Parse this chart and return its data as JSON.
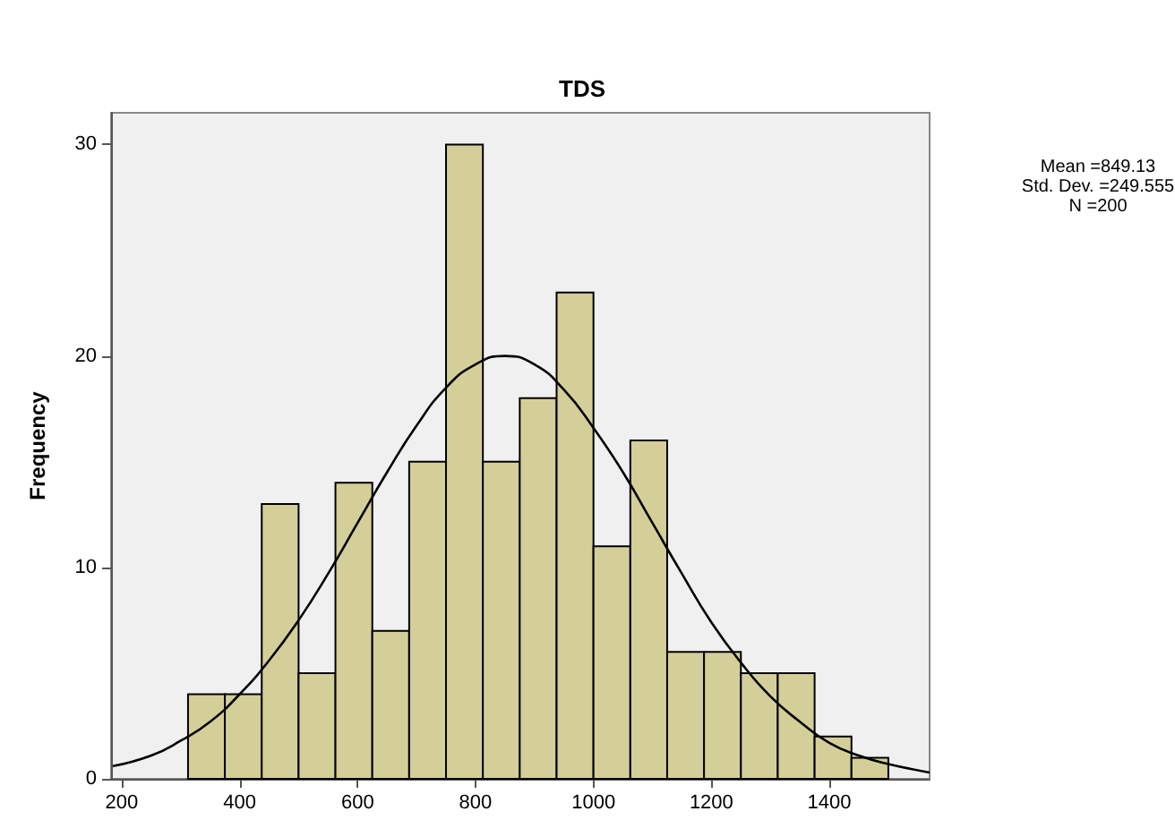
{
  "chart_data": {
    "type": "histogram",
    "title": "TDS",
    "ylabel": "Frequency",
    "annotations": [
      "Mean =849.13",
      "Std. Dev. =249.555",
      "N =200"
    ],
    "series": [
      {
        "color": "#d4cf98",
        "bins": [
          312.5,
          375,
          437.5,
          500,
          562.5,
          625,
          687.5,
          750,
          812.5,
          875,
          937.5,
          1000,
          1062.5,
          1125,
          1187.5,
          1250,
          1312.5,
          1375,
          1437.5,
          1500
        ],
        "values": [
          4,
          4,
          13,
          5,
          14,
          7,
          15,
          30,
          15,
          18,
          23,
          11,
          16,
          6,
          6,
          5,
          5,
          2,
          1
        ]
      },
      {
        "type": "line",
        "color": "#000000",
        "x": [
          185,
          250,
          300,
          350,
          400,
          450,
          500,
          550,
          600,
          650,
          700,
          750,
          800,
          850,
          900,
          950,
          1000,
          1050,
          1100,
          1150,
          1200,
          1250,
          1300,
          1350,
          1400,
          1450,
          1500,
          1570
        ],
        "values": [
          0.6,
          1.1,
          1.8,
          2.7,
          4.0,
          5.6,
          7.5,
          9.7,
          12.1,
          14.5,
          16.7,
          18.5,
          19.6,
          20.0,
          19.6,
          18.4,
          16.6,
          14.5,
          12.1,
          9.7,
          7.4,
          5.5,
          3.9,
          2.7,
          1.7,
          1.1,
          0.7,
          0.3
        ]
      }
    ],
    "xlim": [
      182,
      1570
    ],
    "xticks": [
      200,
      400,
      600,
      800,
      1000,
      1200,
      1400
    ],
    "ylim": [
      0,
      31.5
    ],
    "yticks": [
      0,
      10,
      20,
      30
    ],
    "grid": false,
    "marker": "none",
    "line_style": "solid"
  }
}
